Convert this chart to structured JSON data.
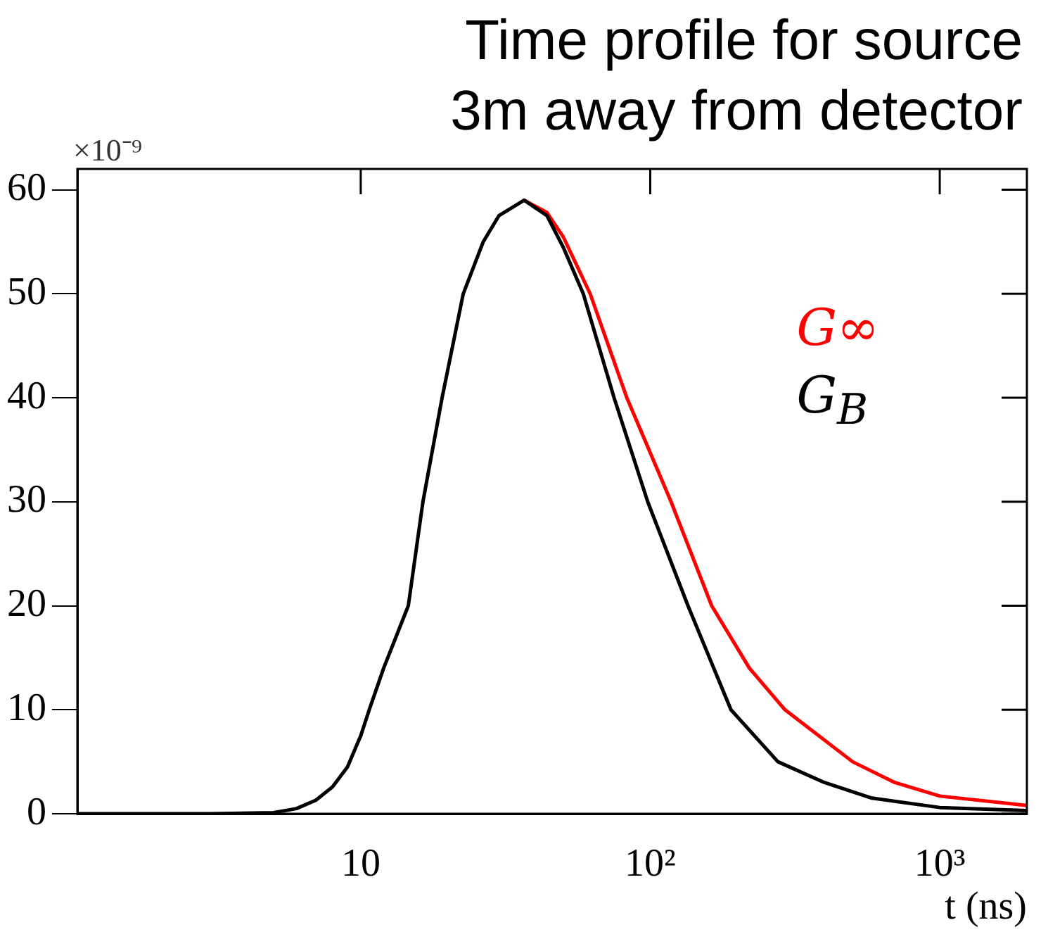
{
  "chart_data": {
    "type": "line",
    "title": "Time profile for source 3m away from detector",
    "xlabel": "t (ns)",
    "log": "x",
    "xlim": [
      1.05,
      2000
    ],
    "xticks": [
      10,
      {
        "value": 100,
        "label": "10²"
      },
      {
        "value": 1000,
        "label": "10³"
      }
    ],
    "ylim": [
      0,
      62
    ],
    "yticks": [
      0,
      10,
      20,
      30,
      40,
      50,
      60
    ],
    "grid": false,
    "legend": "top right",
    "marker": "none",
    "line_style": "solid",
    "annotations": [
      "×10⁻⁹"
    ],
    "series": [
      {
        "name": "G∞",
        "color": "#ff0000",
        "x": [
          36.7,
          44,
          50,
          62,
          83,
          118,
          163,
          220,
          292,
          500,
          700,
          1000,
          2000
        ],
        "values": [
          59,
          57.8,
          55.5,
          50,
          40,
          30,
          20,
          14,
          10,
          5,
          3,
          1.7,
          0.8
        ]
      },
      {
        "name": "G$_{B}$",
        "color": "#000000",
        "x": [
          1.05,
          3,
          5,
          6,
          7,
          8,
          9,
          10,
          10.7,
          12,
          14.6,
          16.4,
          19.1,
          22.6,
          26.5,
          30,
          36.7,
          44,
          50,
          58.7,
          75,
          98,
          135,
          190,
          276,
          400,
          583,
          1000,
          2000
        ],
        "values": [
          0,
          0,
          0.1,
          0.5,
          1.3,
          2.6,
          4.5,
          7.5,
          10,
          14,
          20,
          30,
          40,
          50,
          55,
          57.5,
          59,
          57.5,
          54.5,
          50,
          40,
          30,
          20,
          10,
          5,
          3,
          1.5,
          0.6,
          0.3
        ]
      }
    ]
  }
}
